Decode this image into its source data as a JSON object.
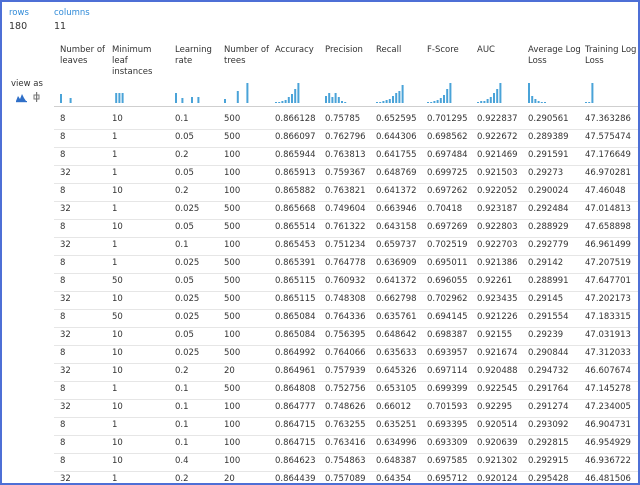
{
  "summary": {
    "rows_label": "rows",
    "rows_value": "180",
    "columns_label": "columns",
    "columns_value": "11"
  },
  "view_as": "view as",
  "table": {
    "columns": [
      "Number of leaves",
      "Minimum leaf instances",
      "Learning rate",
      "Number of trees",
      "Accuracy",
      "Precision",
      "Recall",
      "F-Score",
      "AUC",
      "Average Log Loss",
      "Training Log Loss"
    ],
    "rows": [
      [
        8,
        10,
        0.1,
        500,
        0.866128,
        0.75785,
        0.652595,
        0.701295,
        0.922837,
        0.290561,
        47.363286
      ],
      [
        8,
        1,
        0.05,
        500,
        0.866097,
        0.762796,
        0.644306,
        0.698562,
        0.922672,
        0.289389,
        47.575474
      ],
      [
        8,
        1,
        0.2,
        100,
        0.865944,
        0.763813,
        0.641755,
        0.697484,
        0.921469,
        0.291591,
        47.176649
      ],
      [
        32,
        1,
        0.05,
        100,
        0.865913,
        0.759367,
        0.648769,
        0.699725,
        0.921503,
        0.29273,
        46.970281
      ],
      [
        8,
        10,
        0.2,
        100,
        0.865882,
        0.763821,
        0.641372,
        0.697262,
        0.922052,
        0.290024,
        47.46048
      ],
      [
        32,
        1,
        0.025,
        500,
        0.865668,
        0.749604,
        0.663946,
        0.70418,
        0.923187,
        0.292484,
        47.014813
      ],
      [
        8,
        10,
        0.05,
        500,
        0.865514,
        0.761322,
        0.643158,
        0.697269,
        0.922803,
        0.288929,
        47.658898
      ],
      [
        32,
        1,
        0.1,
        100,
        0.865453,
        0.751234,
        0.659737,
        0.702519,
        0.922703,
        0.292779,
        46.961499
      ],
      [
        8,
        1,
        0.025,
        500,
        0.865391,
        0.764778,
        0.636909,
        0.695011,
        0.921386,
        0.29142,
        47.207519
      ],
      [
        8,
        50,
        0.05,
        500,
        0.865115,
        0.760932,
        0.641372,
        0.696055,
        0.92261,
        0.288991,
        47.647701
      ],
      [
        32,
        10,
        0.025,
        500,
        0.865115,
        0.748308,
        0.662798,
        0.702962,
        0.923435,
        0.29145,
        47.202173
      ],
      [
        8,
        50,
        0.025,
        500,
        0.865084,
        0.764336,
        0.635761,
        0.694145,
        0.921226,
        0.291554,
        47.183315
      ],
      [
        32,
        10,
        0.05,
        100,
        0.865084,
        0.756395,
        0.648642,
        0.698387,
        0.92155,
        0.29239,
        47.031913
      ],
      [
        8,
        10,
        0.025,
        500,
        0.864992,
        0.764066,
        0.635633,
        0.693957,
        0.921674,
        0.290844,
        47.312033
      ],
      [
        32,
        10,
        0.2,
        20,
        0.864961,
        0.757939,
        0.645326,
        0.697114,
        0.920488,
        0.294732,
        46.607674
      ],
      [
        8,
        1,
        0.1,
        500,
        0.864808,
        0.752756,
        0.653105,
        0.699399,
        0.922545,
        0.291764,
        47.145278
      ],
      [
        32,
        10,
        0.1,
        100,
        0.864777,
        0.748626,
        0.66012,
        0.701593,
        0.92295,
        0.291274,
        47.234005
      ],
      [
        8,
        1,
        0.1,
        100,
        0.864715,
        0.763255,
        0.635251,
        0.693395,
        0.920514,
        0.293092,
        46.904731
      ],
      [
        8,
        10,
        0.1,
        100,
        0.864715,
        0.763416,
        0.634996,
        0.693309,
        0.920639,
        0.292815,
        46.954929
      ],
      [
        8,
        10,
        0.4,
        100,
        0.864623,
        0.754863,
        0.648387,
        0.697585,
        0.921302,
        0.292915,
        46.936722
      ],
      [
        32,
        1,
        0.2,
        20,
        0.864439,
        0.757089,
        0.64354,
        0.695712,
        0.920124,
        0.295428,
        46.481506
      ]
    ]
  }
}
